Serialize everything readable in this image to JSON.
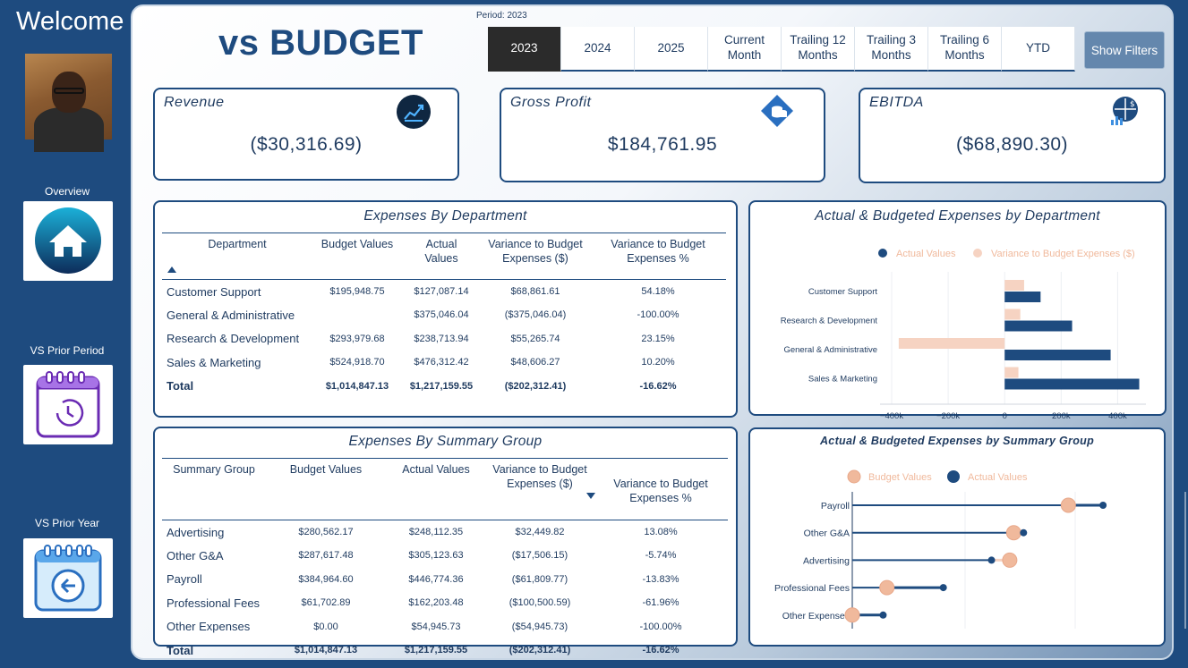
{
  "sidebar": {
    "welcome": "Welcome",
    "nav": [
      {
        "label": "Overview",
        "icon": "home-icon"
      },
      {
        "label": "VS Prior Period",
        "icon": "calendar-clock-icon"
      },
      {
        "label": "VS Prior Year",
        "icon": "calendar-back-icon"
      }
    ]
  },
  "header": {
    "title": "vs BUDGET",
    "period_label": "Period: 2023",
    "period_options": [
      "2023",
      "2024",
      "2025",
      "Current\nMonth",
      "Trailing 12\nMonths",
      "Trailing 3\nMonths",
      "Trailing 6\nMonths",
      "YTD"
    ],
    "selected_period": "2023",
    "show_filters": "Show Filters"
  },
  "kpis": {
    "revenue": {
      "title": "Revenue",
      "value": "($30,316.69)",
      "icon": "chart-growth-icon"
    },
    "gross_profit": {
      "title": "Gross Profit",
      "value": "$184,761.95",
      "icon": "coins-icon"
    },
    "ebitda": {
      "title": "EBITDA",
      "value": "($68,890.30)",
      "icon": "finance-icon"
    }
  },
  "dept_table": {
    "title": "Expenses By Department",
    "headers": [
      "Department",
      "Budget Values",
      "Actual\nValues",
      "Variance to Budget\nExpenses ($)",
      "Variance to Budget\nExpenses %"
    ],
    "rows": [
      [
        "Customer Support",
        "$195,948.75",
        "$127,087.14",
        "$68,861.61",
        "54.18%"
      ],
      [
        "General & Administrative",
        "",
        "$375,046.04",
        "($375,046.04)",
        "-100.00%"
      ],
      [
        "Research & Development",
        "$293,979.68",
        "$238,713.94",
        "$55,265.74",
        "23.15%"
      ],
      [
        "Sales & Marketing",
        "$524,918.70",
        "$476,312.42",
        "$48,606.27",
        "10.20%"
      ]
    ],
    "total": [
      "Total",
      "$1,014,847.13",
      "$1,217,159.55",
      "($202,312.41)",
      "-16.62%"
    ]
  },
  "summary_table": {
    "title": "Expenses By Summary Group",
    "headers": [
      "Summary Group",
      "Budget Values",
      "Actual Values",
      "Variance to Budget\nExpenses ($)",
      "Variance to Budget\nExpenses %"
    ],
    "rows": [
      [
        "Advertising",
        "$280,562.17",
        "$248,112.35",
        "$32,449.82",
        "13.08%"
      ],
      [
        "Other G&A",
        "$287,617.48",
        "$305,123.63",
        "($17,506.15)",
        "-5.74%"
      ],
      [
        "Payroll",
        "$384,964.60",
        "$446,774.36",
        "($61,809.77)",
        "-13.83%"
      ],
      [
        "Professional Fees",
        "$61,702.89",
        "$162,203.48",
        "($100,500.59)",
        "-61.96%"
      ],
      [
        "Other Expenses",
        "$0.00",
        "$54,945.73",
        "($54,945.73)",
        "-100.00%"
      ]
    ],
    "total": [
      "Total",
      "$1,014,847.13",
      "$1,217,159.55",
      "($202,312.41)",
      "-16.62%"
    ]
  },
  "colors": {
    "navy": "#1e4b7f",
    "peach": "#f6d3c2",
    "peach_dark": "#f0b99c"
  },
  "chart_data": [
    {
      "type": "bar",
      "orientation": "horizontal",
      "title": "Actual & Budgeted Expenses by Department",
      "categories": [
        "Customer Support",
        "Research & Development",
        "General & Administrative",
        "Sales & Marketing"
      ],
      "series": [
        {
          "name": "Actual Values",
          "values": [
            127087.14,
            238713.94,
            375046.04,
            476312.42
          ]
        },
        {
          "name": "Variance to Budget Expenses ($)",
          "values": [
            68861.61,
            55265.74,
            -375046.04,
            48606.27
          ]
        }
      ],
      "xlim": [
        -400000,
        500000
      ],
      "xticks": [
        -400000,
        -200000,
        0,
        200000,
        400000
      ],
      "xtick_labels": [
        "−400k",
        "−200k",
        "0",
        "200k",
        "400k"
      ],
      "legend": "top"
    },
    {
      "type": "dumbbell",
      "title": "Actual & Budgeted Expenses by Summary Group",
      "categories": [
        "Payroll",
        "Other G&A",
        "Advertising",
        "Professional Fees",
        "Other Expenses"
      ],
      "series": [
        {
          "name": "Budget Values",
          "values": [
            384964.6,
            287617.48,
            280562.17,
            61702.89,
            0.0
          ]
        },
        {
          "name": "Actual Values",
          "values": [
            446774.36,
            305123.63,
            248112.35,
            162203.48,
            54945.73
          ]
        }
      ],
      "legend": "top"
    }
  ]
}
